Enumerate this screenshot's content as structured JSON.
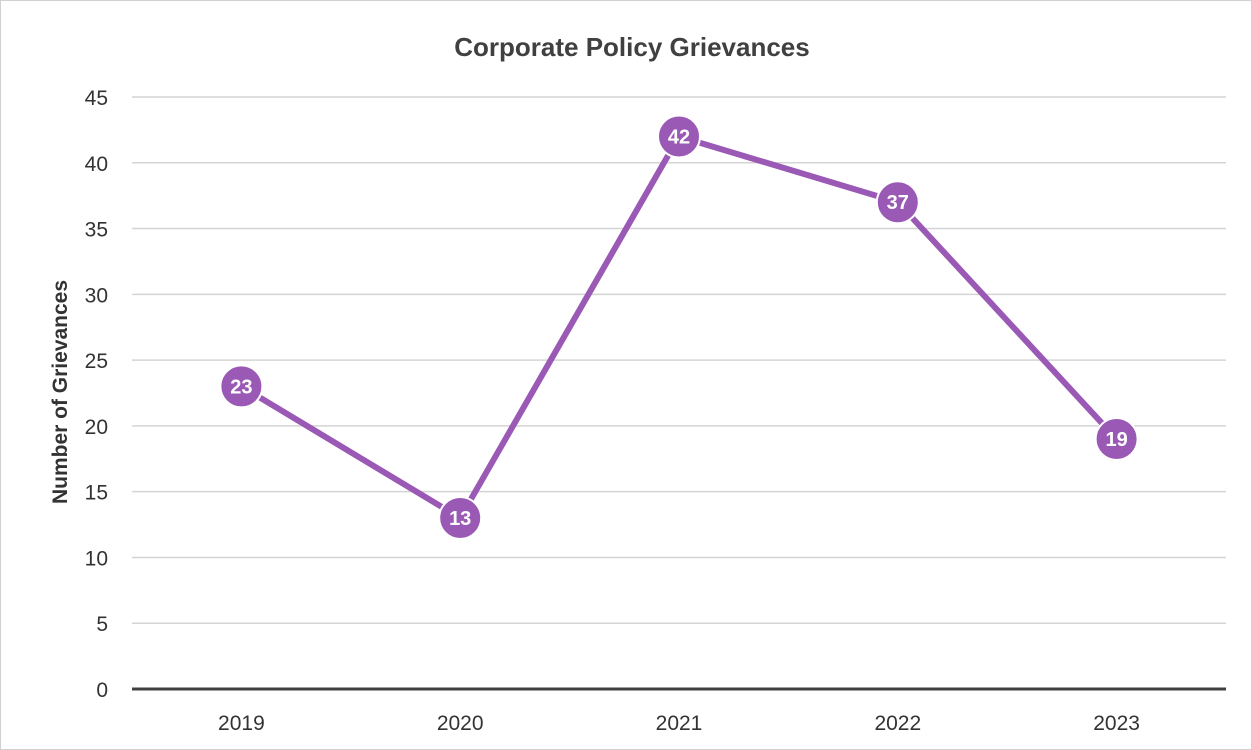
{
  "chart_data": {
    "type": "line",
    "title": "Corporate Policy Grievances",
    "xlabel": "",
    "ylabel": "Number of Grievances",
    "categories": [
      "2019",
      "2020",
      "2021",
      "2022",
      "2023"
    ],
    "series": [
      {
        "values": [
          23,
          13,
          42,
          37,
          19
        ],
        "color": "#9b59b6"
      }
    ],
    "ylim": [
      0,
      45
    ],
    "yticks": [
      0,
      5,
      10,
      15,
      20,
      25,
      30,
      35,
      40,
      45
    ],
    "data_labels": true,
    "grid": true,
    "legend": "none",
    "colors": {
      "gridline": "#d4d4d4",
      "baseline": "#404040",
      "text": "#333333",
      "title": "#404040"
    }
  }
}
